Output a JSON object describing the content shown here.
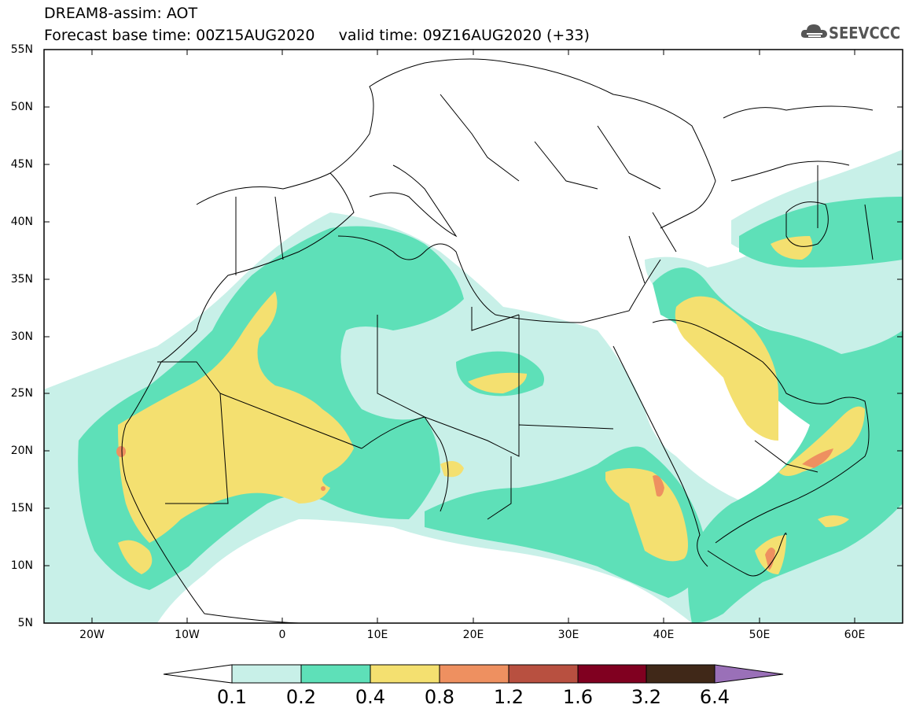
{
  "title": {
    "line1": "DREAM8-assim: AOT",
    "line2": "Forecast base time: 00Z15AUG2020     valid time: 09Z16AUG2020 (+33)"
  },
  "logo": {
    "text": "SEEVCCC",
    "icon": "cloud-icon"
  },
  "axes": {
    "y_labels": [
      "55N",
      "50N",
      "45N",
      "40N",
      "35N",
      "30N",
      "25N",
      "20N",
      "15N",
      "10N",
      "5N"
    ],
    "x_labels": [
      "20W",
      "10W",
      "0",
      "10E",
      "20E",
      "30E",
      "40E",
      "50E",
      "60E"
    ]
  },
  "colorbar": {
    "labels": [
      "0.1",
      "0.2",
      "0.4",
      "0.8",
      "1.2",
      "1.6",
      "3.2",
      "6.4"
    ],
    "colors": [
      "#ffffff",
      "#c8f0e8",
      "#5ee0b8",
      "#f4e070",
      "#ee9060",
      "#b85040",
      "#800020",
      "#402818",
      "#9a70b8"
    ]
  },
  "chart_data": {
    "type": "heatmap",
    "variable": "AOT",
    "xlim": [
      -25,
      65
    ],
    "ylim": [
      5,
      55
    ],
    "levels": [
      0.1,
      0.2,
      0.4,
      0.8,
      1.2,
      1.6,
      3.2,
      6.4
    ],
    "regions": [
      {
        "name": "",
        "level": 0.1
      },
      {
        "name": "",
        "level": 0.2
      },
      {
        "name": "",
        "level": 0.4
      }
    ]
  }
}
